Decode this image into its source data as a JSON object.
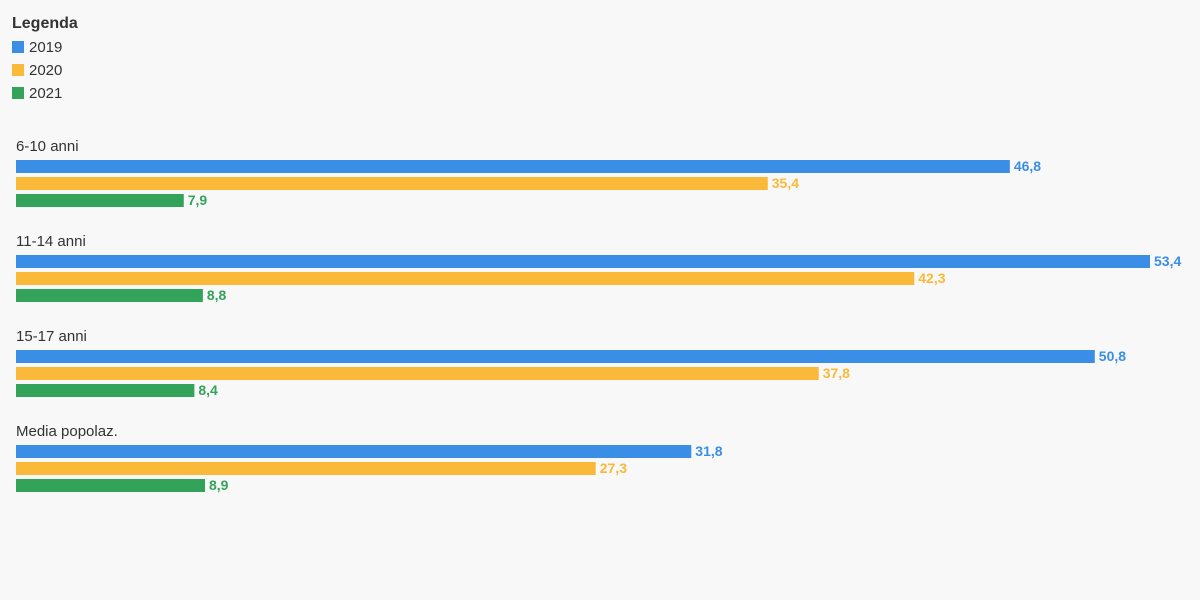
{
  "chart_data": {
    "type": "bar",
    "orientation": "horizontal",
    "legend_title": "Legenda",
    "legend_position": "top-left",
    "categories": [
      "6-10 anni",
      "11-14 anni",
      "15-17 anni",
      "Media popolaz."
    ],
    "series": [
      {
        "name": "2019",
        "color": "#3a8ee6",
        "values": [
          46.8,
          53.4,
          50.8,
          31.8
        ],
        "value_labels": [
          "46,8",
          "53,4",
          "50,8",
          "31,8"
        ]
      },
      {
        "name": "2020",
        "color": "#fbb93a",
        "values": [
          35.4,
          42.3,
          37.8,
          27.3
        ],
        "value_labels": [
          "35,4",
          "42,3",
          "37,8",
          "27,3"
        ]
      },
      {
        "name": "2021",
        "color": "#34a35a",
        "values": [
          7.9,
          8.8,
          8.4,
          8.9
        ],
        "value_labels": [
          "7,9",
          "8,8",
          "8,4",
          "8,9"
        ]
      }
    ]
  }
}
